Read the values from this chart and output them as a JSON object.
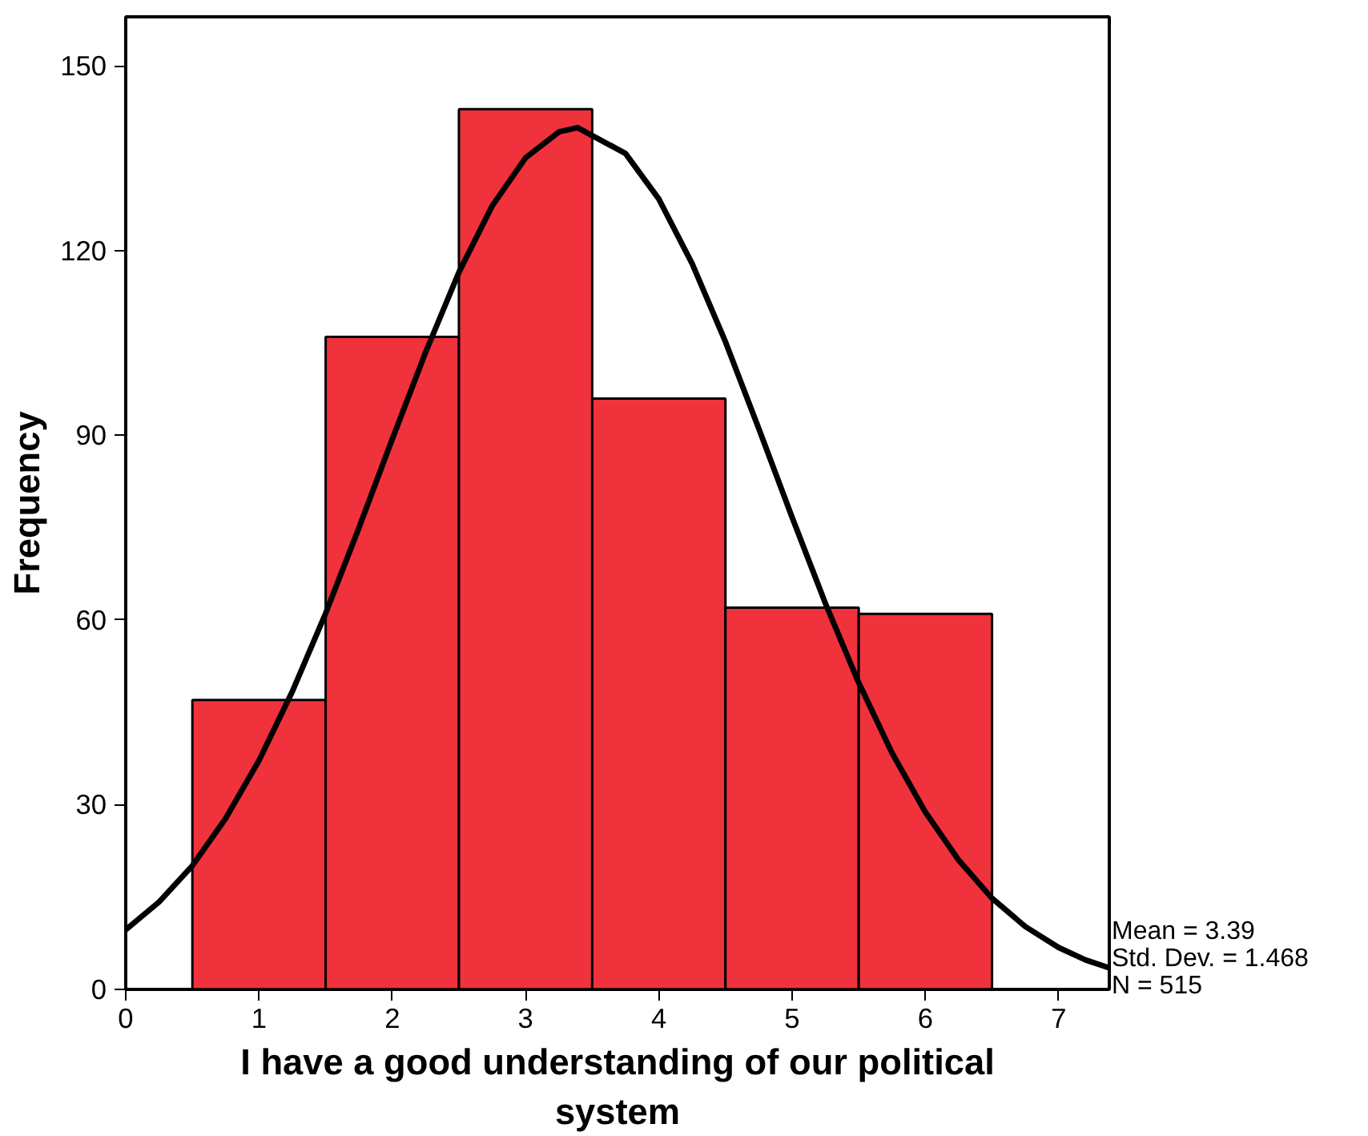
{
  "chart_data": {
    "type": "histogram",
    "xlabel": "I have a good understanding of our political system",
    "ylabel": "Frequency",
    "bins": [
      0.5,
      1.5,
      2.5,
      3.5,
      4.5,
      5.5,
      6.5
    ],
    "values": [
      47,
      106,
      143,
      96,
      62,
      61
    ],
    "color": "#f0323c",
    "series": [
      {
        "type": "line",
        "color": "#000000",
        "x": [
          0,
          0.25,
          0.5,
          0.75,
          1,
          1.25,
          1.5,
          1.75,
          2,
          2.25,
          2.5,
          2.75,
          3,
          3.25,
          3.39,
          3.75,
          4,
          4.25,
          4.5,
          4.75,
          5,
          5.25,
          5.5,
          5.75,
          6,
          6.25,
          6.5,
          6.75,
          7,
          7.2,
          7.38
        ],
        "values": [
          9.7,
          14.2,
          20.1,
          27.8,
          37.2,
          48.4,
          61.1,
          75.0,
          89.4,
          103.5,
          116.5,
          127.3,
          135.1,
          139.3,
          140.0,
          135.8,
          128.4,
          117.9,
          105.2,
          91.1,
          76.7,
          62.7,
          49.8,
          38.4,
          28.8,
          21.0,
          14.8,
          10.2,
          6.8,
          4.8,
          3.5
        ]
      }
    ],
    "xlim": [
      0,
      7.38
    ],
    "ylim": [
      0,
      158
    ],
    "xticks": [
      0,
      1,
      2,
      3,
      4,
      5,
      6,
      7
    ],
    "yticks": [
      0,
      30,
      60,
      90,
      120,
      150
    ],
    "grid": false,
    "annotations": [
      "Mean = 3.39",
      "Std. Dev. = 1.468",
      "N = 515"
    ]
  }
}
